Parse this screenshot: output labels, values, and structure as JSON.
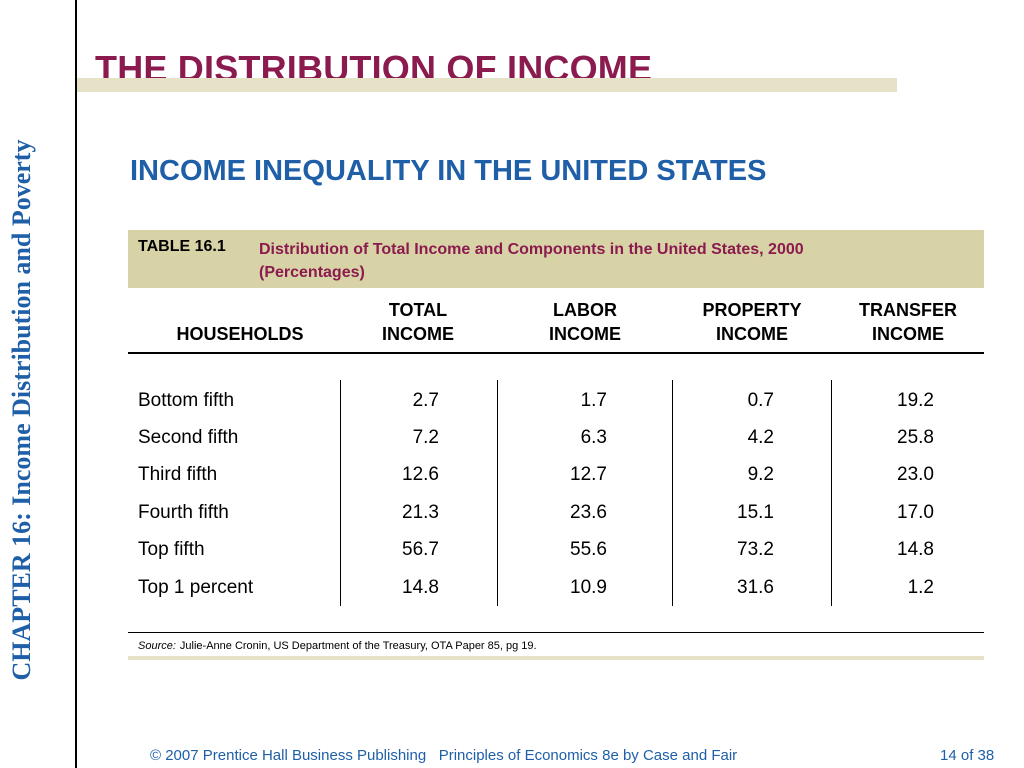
{
  "side_label": "CHAPTER 16:  Income Distribution and Poverty",
  "title": "THE DISTRIBUTION OF INCOME",
  "subtitle": "INCOME INEQUALITY IN THE UNITED STATES",
  "table": {
    "number": "TABLE 16.1",
    "caption_line1": "Distribution of Total Income and Components in the United States, 2000",
    "caption_line2": "(Percentages)",
    "columns": [
      {
        "line1": "",
        "line2": "HOUSEHOLDS"
      },
      {
        "line1": "TOTAL",
        "line2": "INCOME"
      },
      {
        "line1": "LABOR",
        "line2": "INCOME"
      },
      {
        "line1": "PROPERTY",
        "line2": "INCOME"
      },
      {
        "line1": "TRANSFER",
        "line2": "INCOME"
      }
    ],
    "rows": [
      {
        "household": "Bottom fifth",
        "total": "2.7",
        "labor": "1.7",
        "property": "0.7",
        "transfer": "19.2"
      },
      {
        "household": "Second fifth",
        "total": "7.2",
        "labor": "6.3",
        "property": "4.2",
        "transfer": "25.8"
      },
      {
        "household": "Third fifth",
        "total": "12.6",
        "labor": "12.7",
        "property": "9.2",
        "transfer": "23.0"
      },
      {
        "household": "Fourth fifth",
        "total": "21.3",
        "labor": "23.6",
        "property": "15.1",
        "transfer": "17.0"
      },
      {
        "household": "Top fifth",
        "total": "56.7",
        "labor": "55.6",
        "property": "73.2",
        "transfer": "14.8"
      },
      {
        "household": "Top 1 percent",
        "total": "14.8",
        "labor": "10.9",
        "property": "31.6",
        "transfer": "1.2"
      }
    ],
    "source_label": "Source:",
    "source_text": "Julie-Anne Cronin, US Department of the Treasury, OTA Paper 85, pg 19."
  },
  "footer": {
    "copyright": "© 2007 Prentice Hall Business Publishing   Principles of Economics 8e by Case and Fair",
    "page": "14 of 38"
  },
  "colors": {
    "title": "#8b1a4e",
    "accent_blue": "#1f5fa8",
    "header_band": "#d8d3a6",
    "title_band": "#e6e2c8"
  }
}
